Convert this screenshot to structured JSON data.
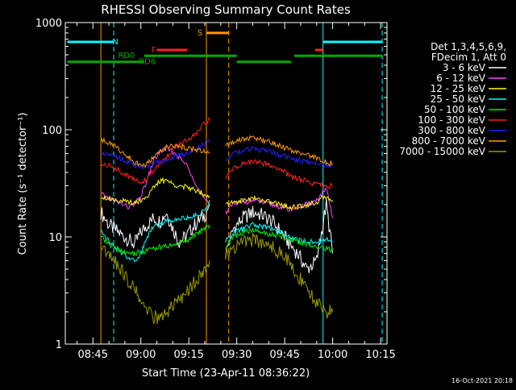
{
  "chart_data": {
    "type": "line",
    "title": "RHESSI Observing Summary Count Rates",
    "xlabel": "Start Time (23-Apr-11 08:36:22)",
    "ylabel": "Count Rate (s⁻¹ detector⁻¹)",
    "y_scale": "log",
    "ylim": [
      1,
      1000
    ],
    "xlim": [
      "08:36:22",
      "10:17:00"
    ],
    "x_ticks": [
      "08:45",
      "09:00",
      "09:15",
      "09:30",
      "09:45",
      "10:00",
      "10:15"
    ],
    "y_ticks": [
      "1",
      "10",
      "100",
      "1000"
    ],
    "footer_date": "16-Oct-2021 20:18",
    "legend_position": "right",
    "legend_header": [
      "Det 1,3,4,5,6,9,",
      "FDecim 1, Att 0"
    ],
    "gaps": [
      [
        "08:37:00",
        "08:47:30"
      ],
      [
        "09:21:30",
        "09:26:30"
      ],
      [
        "10:00:10",
        "10:17:00"
      ]
    ],
    "series": [
      {
        "name": "3 - 6 keV",
        "color": "#ffffff",
        "segments": [
          {
            "x": [
              "08:47:30",
              "08:50",
              "08:53",
              "08:56",
              "08:58",
              "09:00",
              "09:02",
              "09:04",
              "09:06",
              "09:08",
              "09:10",
              "09:12",
              "09:14",
              "09:16",
              "09:18",
              "09:20",
              "09:21:30"
            ],
            "y": [
              17,
              13,
              11,
              9.5,
              8.5,
              11,
              13,
              15,
              14,
              17,
              12,
              9,
              10,
              12,
              14,
              16,
              20
            ]
          },
          {
            "x": [
              "09:26:30",
              "09:29",
              "09:32",
              "09:35",
              "09:38",
              "09:41",
              "09:44",
              "09:46",
              "09:49",
              "09:52",
              "09:55",
              "09:58",
              "10:00"
            ],
            "y": [
              7,
              12,
              15,
              17,
              16,
              14,
              11,
              9,
              7,
              5,
              6,
              20,
              7
            ]
          }
        ]
      },
      {
        "name": "6 - 12 keV",
        "color": "#ff44ff",
        "segments": [
          {
            "x": [
              "08:47:30",
              "08:50",
              "08:53",
              "08:56",
              "08:58",
              "09:00",
              "09:02",
              "09:04",
              "09:06",
              "09:08",
              "09:10",
              "09:12",
              "09:14",
              "09:16",
              "09:18",
              "09:20",
              "09:21:30"
            ],
            "y": [
              25,
              23,
              21,
              19,
              20,
              24,
              34,
              52,
              62,
              68,
              62,
              55,
              48,
              38,
              28,
              22,
              20
            ]
          },
          {
            "x": [
              "09:26:30",
              "09:29",
              "09:32",
              "09:35",
              "09:38",
              "09:41",
              "09:44",
              "09:46",
              "09:49",
              "09:52",
              "09:55",
              "09:58",
              "10:00"
            ],
            "y": [
              17,
              20,
              21,
              22,
              21,
              20,
              19,
              18,
              19,
              20,
              22,
              28,
              15
            ]
          }
        ]
      },
      {
        "name": "12 - 25 keV",
        "color": "#ffff00",
        "segments": [
          {
            "x": [
              "08:47:30",
              "08:50",
              "08:53",
              "08:56",
              "08:58",
              "09:00",
              "09:02",
              "09:04",
              "09:06",
              "09:08",
              "09:10",
              "09:12",
              "09:14",
              "09:16",
              "09:18",
              "09:20",
              "09:21:30"
            ],
            "y": [
              24,
              23,
              22,
              21,
              21,
              22,
              24,
              29,
              33,
              34,
              31,
              30,
              29,
              28,
              27,
              25,
              24
            ]
          },
          {
            "x": [
              "09:26:30",
              "09:29",
              "09:32",
              "09:35",
              "09:38",
              "09:41",
              "09:44",
              "09:46",
              "09:49",
              "09:52",
              "09:55",
              "09:58",
              "10:00"
            ],
            "y": [
              20,
              21,
              22,
              23,
              22,
              21,
              20,
              19,
              19,
              20,
              21,
              24,
              22
            ]
          }
        ]
      },
      {
        "name": "25 - 50 keV",
        "color": "#00ffff",
        "segments": [
          {
            "x": [
              "08:47:30",
              "08:50",
              "08:53",
              "08:56",
              "08:58",
              "09:00",
              "09:02",
              "09:04",
              "09:06",
              "09:08",
              "09:10",
              "09:12",
              "09:14",
              "09:16",
              "09:18",
              "09:20",
              "09:21:30"
            ],
            "y": [
              12,
              9,
              7.5,
              6.5,
              6,
              7,
              10,
              13,
              13.5,
              14,
              14.5,
              15,
              15,
              15.5,
              16,
              18,
              22
            ]
          },
          {
            "x": [
              "09:26:30",
              "09:29",
              "09:32",
              "09:35",
              "09:38",
              "09:41",
              "09:44",
              "09:46",
              "09:49",
              "09:52",
              "09:55",
              "09:58",
              "10:00"
            ],
            "y": [
              9,
              11,
              12,
              13,
              12.5,
              12,
              11,
              10,
              9.5,
              9,
              9,
              9.5,
              9
            ]
          }
        ]
      },
      {
        "name": "50 - 100 keV",
        "color": "#00ee00",
        "segments": [
          {
            "x": [
              "08:47:30",
              "08:50",
              "08:53",
              "08:56",
              "08:58",
              "09:00",
              "09:02",
              "09:04",
              "09:06",
              "09:08",
              "09:10",
              "09:12",
              "09:14",
              "09:16",
              "09:18",
              "09:20",
              "09:21:30"
            ],
            "y": [
              10,
              8.5,
              7.5,
              7,
              7,
              7.2,
              7.5,
              7.8,
              8,
              8.2,
              8.4,
              8.8,
              9.2,
              10,
              11,
              12,
              13
            ]
          },
          {
            "x": [
              "09:26:30",
              "09:29",
              "09:32",
              "09:35",
              "09:38",
              "09:41",
              "09:44",
              "09:46",
              "09:49",
              "09:52",
              "09:55",
              "09:58",
              "10:00"
            ],
            "y": [
              8,
              10,
              11,
              11.5,
              11,
              10.5,
              10,
              9.5,
              9,
              8.5,
              8.2,
              7.8,
              7.5
            ]
          }
        ]
      },
      {
        "name": "100 - 300 keV",
        "color": "#ff2020",
        "segments": [
          {
            "x": [
              "08:47:30",
              "08:50",
              "08:53",
              "08:56",
              "08:58",
              "09:00",
              "09:02",
              "09:04",
              "09:06",
              "09:08",
              "09:10",
              "09:12",
              "09:14",
              "09:16",
              "09:18",
              "09:20",
              "09:21:30"
            ],
            "y": [
              48,
              46,
              42,
              37,
              34,
              32,
              35,
              42,
              48,
              56,
              65,
              72,
              78,
              85,
              96,
              115,
              125
            ]
          },
          {
            "x": [
              "09:26:30",
              "09:29",
              "09:32",
              "09:35",
              "09:38",
              "09:41",
              "09:44",
              "09:46",
              "09:49",
              "09:52",
              "09:55",
              "09:58",
              "10:00"
            ],
            "y": [
              35,
              44,
              48,
              50,
              49,
              46,
              42,
              38,
              35,
              33,
              31,
              30,
              30
            ]
          }
        ]
      },
      {
        "name": "300 - 800 keV",
        "color": "#2020ff",
        "segments": [
          {
            "x": [
              "08:47:30",
              "08:50",
              "08:53",
              "08:56",
              "08:58",
              "09:00",
              "09:02",
              "09:04",
              "09:06",
              "09:08",
              "09:10",
              "09:12",
              "09:14",
              "09:16",
              "09:18",
              "09:20",
              "09:21:30"
            ],
            "y": [
              62,
              60,
              55,
              50,
              47,
              45,
              46,
              48,
              50,
              52,
              55,
              58,
              60,
              64,
              68,
              75,
              82
            ]
          },
          {
            "x": [
              "09:26:30",
              "09:29",
              "09:32",
              "09:35",
              "09:38",
              "09:41",
              "09:44",
              "09:46",
              "09:49",
              "09:52",
              "09:55",
              "09:58",
              "10:00"
            ],
            "y": [
              52,
              60,
              64,
              66,
              64,
              62,
              58,
              55,
              52,
              50,
              48,
              47,
              46
            ]
          }
        ]
      },
      {
        "name": "800 - 7000 keV",
        "color": "#ff9900",
        "segments": [
          {
            "x": [
              "08:47:30",
              "08:50",
              "08:53",
              "08:56",
              "08:58",
              "09:00",
              "09:02",
              "09:04",
              "09:06",
              "09:08",
              "09:10",
              "09:12",
              "09:14",
              "09:16",
              "09:18",
              "09:20",
              "09:21:30"
            ],
            "y": [
              80,
              76,
              66,
              56,
              50,
              46,
              48,
              56,
              62,
              68,
              70,
              70,
              68,
              66,
              64,
              62,
              60
            ]
          },
          {
            "x": [
              "09:26:30",
              "09:29",
              "09:32",
              "09:35",
              "09:38",
              "09:41",
              "09:44",
              "09:46",
              "09:49",
              "09:52",
              "09:55",
              "09:58",
              "10:00"
            ],
            "y": [
              70,
              76,
              82,
              84,
              80,
              76,
              70,
              66,
              62,
              58,
              54,
              50,
              48
            ]
          }
        ]
      },
      {
        "name": "7000 - 15000 keV",
        "color": "#999900",
        "segments": [
          {
            "x": [
              "08:47:30",
              "08:50",
              "08:53",
              "08:56",
              "08:58",
              "09:00",
              "09:02",
              "09:04",
              "09:06",
              "09:08",
              "09:10",
              "09:12",
              "09:14",
              "09:16",
              "09:18",
              "09:20",
              "09:21:30"
            ],
            "y": [
              8.5,
              7,
              5.5,
              4,
              3.2,
              2.5,
              2,
              1.8,
              1.7,
              2,
              2.2,
              2.5,
              2.8,
              3.5,
              4,
              5,
              6
            ]
          },
          {
            "x": [
              "09:26:30",
              "09:29",
              "09:32",
              "09:35",
              "09:38",
              "09:41",
              "09:44",
              "09:46",
              "09:49",
              "09:52",
              "09:55",
              "09:58",
              "10:00"
            ],
            "y": [
              7,
              8,
              9,
              9.5,
              9,
              8,
              7,
              6,
              4.5,
              3,
              2.5,
              2,
              2
            ]
          }
        ]
      }
    ],
    "flag_bars": [
      {
        "label": "N",
        "color": "#00ffff",
        "level": 660,
        "spans": [
          [
            "08:37:00",
            "08:51:30"
          ],
          [
            "09:57:00",
            "10:15:30"
          ]
        ],
        "label_at": "08:52:00"
      },
      {
        "label": "S",
        "color": "#ff9900",
        "level": 800,
        "spans": [
          [
            "09:20:30",
            "09:27:30"
          ]
        ],
        "label_at": "09:18:30"
      },
      {
        "label": "F",
        "color": "#ff2020",
        "level": 555,
        "spans": [
          [
            "09:05:00",
            "09:14:30"
          ],
          [
            "09:54:30",
            "09:57:00"
          ]
        ],
        "label_at": "09:04:00"
      },
      {
        "label": "RD0",
        "color": "#00aa00",
        "level": 490,
        "spans": [
          [
            "09:01:00",
            "09:30:00"
          ],
          [
            "09:48:00",
            "10:15:30"
          ]
        ],
        "label_at": "08:55:30"
      },
      {
        "label": "RD6",
        "color": "#00aa00",
        "level": 430,
        "spans": [
          [
            "08:37:00",
            "09:01:00"
          ],
          [
            "09:30:00",
            "09:47:00"
          ]
        ],
        "label_at": "09:02:00"
      }
    ],
    "vertical_markers": [
      {
        "x": "08:47:30",
        "color": "#ff9900",
        "style": "solid"
      },
      {
        "x": "08:51:30",
        "color": "#00ffff",
        "style": "dashed"
      },
      {
        "x": "09:20:30",
        "color": "#ff9900",
        "style": "solid"
      },
      {
        "x": "09:27:30",
        "color": "#ff9900",
        "style": "dashed"
      },
      {
        "x": "09:57:00",
        "color": "#00ffff",
        "style": "solid"
      },
      {
        "x": "10:15:30",
        "color": "#00ffff",
        "style": "dashed"
      }
    ]
  }
}
